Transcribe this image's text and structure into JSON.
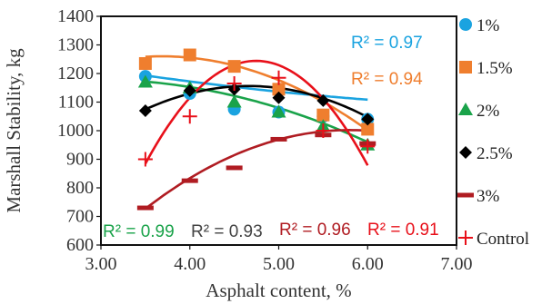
{
  "chart_data": {
    "type": "scatter",
    "xlabel": "Asphalt content, %",
    "ylabel": "Marshall Stability, kg",
    "xlim": [
      3.0,
      7.0
    ],
    "ylim": [
      600,
      1400
    ],
    "xticks": [
      3.0,
      4.0,
      5.0,
      6.0,
      7.0
    ],
    "xtick_labels": [
      "3.00",
      "4.00",
      "5.00",
      "6.00",
      "7.00"
    ],
    "yticks": [
      600,
      700,
      800,
      900,
      1000,
      1100,
      1200,
      1300,
      1400
    ],
    "ytick_labels": [
      "600",
      "700",
      "800",
      "900",
      "1000",
      "1100",
      "1200",
      "1300",
      "1400"
    ],
    "grid": false,
    "legend_position": "right",
    "series": [
      {
        "name": "1%",
        "marker": "circle",
        "color": "#1aa3e0",
        "x": [
          3.5,
          4.0,
          4.5,
          5.0,
          5.5,
          6.0
        ],
        "y": [
          1190,
          1130,
          1075,
          1065,
          1050,
          1040
        ],
        "trend": [
          1193.0,
          -43.64,
          3.93
        ]
      },
      {
        "name": "1.5%",
        "marker": "square",
        "color": "#ef7e2e",
        "x": [
          3.5,
          4.0,
          4.5,
          5.0,
          5.5,
          6.0
        ],
        "y": [
          1235,
          1265,
          1225,
          1145,
          1055,
          1005
        ],
        "trend": [
          1258.5,
          17.79,
          -48.21
        ]
      },
      {
        "name": "2%",
        "marker": "triangle",
        "color": "#1aa34a",
        "x": [
          3.5,
          4.0,
          4.5,
          5.0,
          5.5,
          6.0
        ],
        "y": [
          1170,
          1150,
          1100,
          1065,
          1015,
          950
        ],
        "trend": [
          1171.6,
          -26.57,
          -23.21
        ]
      },
      {
        "name": "2.5%",
        "marker": "diamond",
        "color": "#000000",
        "x": [
          3.5,
          4.0,
          4.5,
          5.0,
          5.5,
          6.0
        ],
        "y": [
          1070,
          1140,
          1145,
          1115,
          1105,
          1040
        ],
        "trend": [
          1074.5,
          140.86,
          -60.71
        ]
      },
      {
        "name": "3%",
        "marker": "dash",
        "color": "#b01c22",
        "x": [
          3.5,
          4.0,
          4.5,
          5.0,
          5.5,
          6.0
        ],
        "y": [
          730,
          825,
          870,
          970,
          985,
          955
        ],
        "trend": [
          726.9,
          239.57,
          -52.14
        ]
      },
      {
        "name": "Control",
        "marker": "plus",
        "color": "#e8101a",
        "x": [
          3.5,
          4.0,
          4.5,
          5.0,
          5.5,
          6.0
        ],
        "y": [
          900,
          1050,
          1165,
          1185,
          1000,
          945
        ],
        "trend": [
          884.3,
          578.07,
          -232.14
        ]
      }
    ],
    "annotations": [
      {
        "text": "R² = 0.97",
        "color": "#1aa3e0"
      },
      {
        "text": "R² = 0.94",
        "color": "#ef7e2e"
      },
      {
        "text": "R² = 0.99",
        "color": "#1aa34a"
      },
      {
        "text": "R² = 0.93",
        "color": "#444444"
      },
      {
        "text": "R² = 0.96",
        "color": "#b01c22"
      },
      {
        "text": "R² = 0.91",
        "color": "#e8101a"
      }
    ]
  }
}
